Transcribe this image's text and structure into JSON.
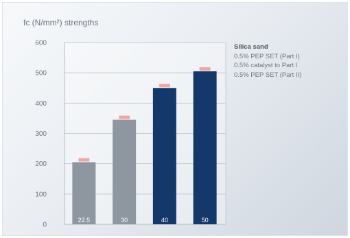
{
  "chart_data": {
    "type": "bar",
    "title": "fc (N/mm²) strengths",
    "categories": [
      "22.5",
      "30",
      "40",
      "50"
    ],
    "values": [
      205,
      345,
      450,
      505
    ],
    "colors": [
      "#8e979f",
      "#8e979f",
      "#15386b",
      "#15386b"
    ],
    "value_label_color": "#f0a6a6",
    "ylim": [
      0,
      600
    ],
    "yticks": [
      "0",
      "100",
      "200",
      "300",
      "400",
      "500",
      "600"
    ],
    "grid": true,
    "legend": {
      "position": "right",
      "title": "Silica sand",
      "items": [
        "0.5% PEP SET (Part I)",
        "0.5% catalyst to Part I",
        "0.5% PEP SET (Part II)"
      ]
    }
  }
}
